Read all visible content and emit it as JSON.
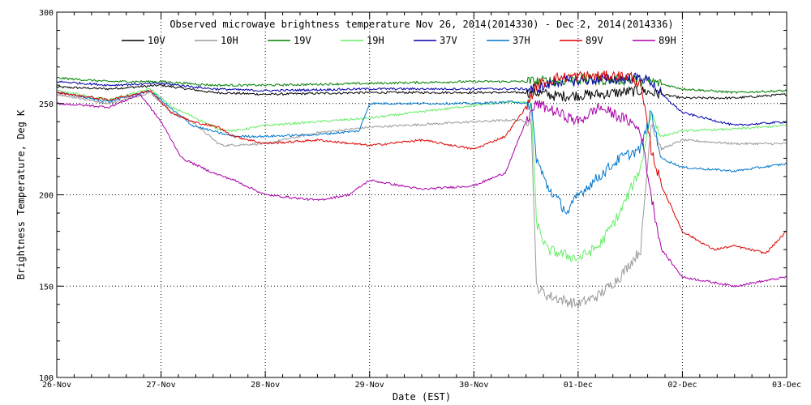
{
  "chart_data": {
    "type": "line",
    "title": "Observed microwave brightness temperature Nov 26, 2014(2014330) - Dec  2, 2014(2014336)",
    "xlabel": "Date (EST)",
    "ylabel": "Brightness Temperature, Deg K",
    "ylim": [
      100,
      300
    ],
    "xlim": [
      0,
      7
    ],
    "grid": true,
    "legend_position": "top",
    "x_tick_labels": [
      "26-Nov",
      "27-Nov",
      "28-Nov",
      "29-Nov",
      "30-Nov",
      "01-Dec",
      "02-Dec",
      "03-Dec"
    ],
    "x_ticks": [
      0,
      1,
      2,
      3,
      4,
      5,
      6,
      7
    ],
    "y_ticks": [
      100,
      150,
      200,
      250,
      300
    ],
    "series": [
      {
        "name": "10V",
        "color": "#000000",
        "x": [
          0,
          0.5,
          1,
          1.5,
          2,
          3,
          4,
          4.6,
          4.8,
          5.2,
          5.6,
          5.7,
          6,
          6.5,
          7
        ],
        "y": [
          259,
          258,
          260,
          256,
          255,
          256,
          256,
          256,
          254,
          255,
          257,
          256,
          253,
          253,
          255
        ]
      },
      {
        "name": "10H",
        "color": "#999999",
        "x": [
          0,
          0.5,
          0.9,
          1.1,
          1.3,
          1.55,
          1.6,
          2,
          2.5,
          3,
          4,
          4.4,
          4.55,
          4.6,
          4.7,
          5,
          5.2,
          5.4,
          5.6,
          5.7,
          5.8,
          6,
          6.5,
          7
        ],
        "y": [
          255,
          250,
          256,
          245,
          240,
          228,
          227,
          228,
          234,
          237,
          240,
          241,
          240,
          150,
          145,
          140,
          145,
          155,
          170,
          240,
          225,
          230,
          228,
          228
        ]
      },
      {
        "name": "19V",
        "color": "#008000",
        "x": [
          0,
          0.5,
          1,
          1.5,
          2,
          3,
          4,
          4.6,
          5,
          5.5,
          5.7,
          6,
          6.5,
          7
        ],
        "y": [
          264,
          262,
          262,
          260,
          260,
          261,
          262,
          262,
          263,
          263,
          262,
          258,
          256,
          257
        ]
      },
      {
        "name": "19H",
        "color": "#66ee66",
        "x": [
          0,
          0.5,
          0.9,
          1.1,
          1.3,
          1.55,
          1.7,
          2,
          2.5,
          3,
          4,
          4.4,
          4.55,
          4.6,
          4.7,
          5,
          5.2,
          5.4,
          5.6,
          5.7,
          5.8,
          6,
          6.5,
          7
        ],
        "y": [
          257,
          252,
          258,
          248,
          243,
          236,
          235,
          238,
          240,
          242,
          249,
          251,
          250,
          185,
          170,
          165,
          172,
          190,
          215,
          245,
          232,
          235,
          236,
          238
        ]
      },
      {
        "name": "37V",
        "color": "#0000aa",
        "x": [
          0,
          0.5,
          1,
          1.5,
          2,
          3,
          4,
          4.6,
          4.8,
          5.2,
          5.6,
          5.7,
          5.8,
          6,
          6.5,
          7
        ],
        "y": [
          262,
          260,
          261,
          258,
          257,
          258,
          258,
          258,
          262,
          263,
          264,
          262,
          255,
          245,
          238,
          240
        ]
      },
      {
        "name": "37H",
        "color": "#0077cc",
        "x": [
          0,
          0.5,
          0.9,
          1.1,
          1.3,
          1.55,
          1.7,
          2,
          2.5,
          2.9,
          3,
          3.5,
          4,
          4.4,
          4.55,
          4.6,
          4.7,
          4.9,
          5,
          5.2,
          5.4,
          5.6,
          5.7,
          5.8,
          6,
          6.5,
          7
        ],
        "y": [
          256,
          251,
          257,
          247,
          238,
          234,
          232,
          232,
          233,
          235,
          250,
          250,
          250,
          251,
          249,
          220,
          205,
          190,
          200,
          210,
          220,
          225,
          245,
          220,
          215,
          213,
          217
        ]
      },
      {
        "name": "89V",
        "color": "#dd0000",
        "x": [
          0,
          0.5,
          0.9,
          1.1,
          1.3,
          1.55,
          1.7,
          2,
          2.5,
          3,
          3.5,
          4,
          4.3,
          4.5,
          4.6,
          4.8,
          5,
          5.2,
          5.5,
          5.6,
          5.7,
          5.8,
          6,
          6.3,
          6.5,
          6.8,
          7
        ],
        "y": [
          256,
          252,
          257,
          245,
          240,
          237,
          232,
          228,
          230,
          227,
          230,
          225,
          232,
          248,
          260,
          264,
          265,
          265,
          265,
          260,
          225,
          205,
          180,
          170,
          172,
          168,
          180
        ]
      },
      {
        "name": "89H",
        "color": "#aa00aa",
        "x": [
          0,
          0.5,
          0.8,
          1,
          1.2,
          1.5,
          1.7,
          2,
          2.5,
          2.8,
          3,
          3.5,
          4,
          4.3,
          4.5,
          4.6,
          4.8,
          5,
          5.2,
          5.5,
          5.6,
          5.7,
          5.8,
          6,
          6.5,
          7
        ],
        "y": [
          250,
          248,
          255,
          240,
          220,
          212,
          208,
          200,
          197,
          200,
          208,
          203,
          205,
          212,
          240,
          250,
          245,
          240,
          248,
          240,
          235,
          200,
          170,
          155,
          150,
          155
        ]
      }
    ]
  }
}
